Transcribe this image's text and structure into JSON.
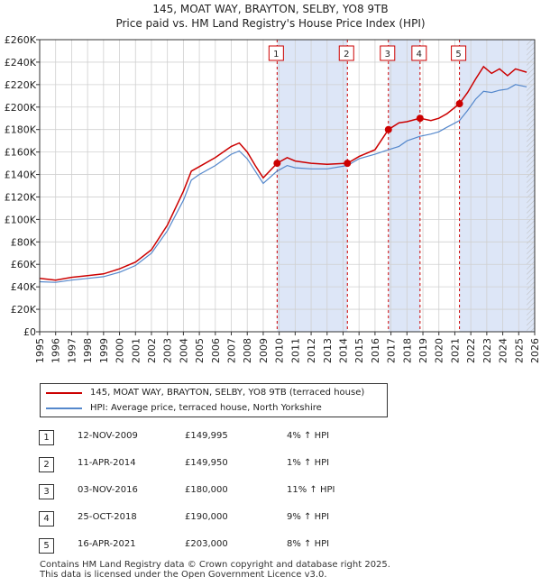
{
  "chart_data": {
    "type": "line",
    "title": "145, MOAT WAY, BRAYTON, SELBY, YO8 9TB",
    "subtitle": "Price paid vs. HM Land Registry's House Price Index (HPI)",
    "xlim": [
      1995,
      2026
    ],
    "ylim": [
      0,
      260000
    ],
    "y_ticks": [
      0,
      20000,
      40000,
      60000,
      80000,
      100000,
      120000,
      140000,
      160000,
      180000,
      200000,
      220000,
      240000,
      260000
    ],
    "y_tick_labels": [
      "£0",
      "£20K",
      "£40K",
      "£60K",
      "£80K",
      "£100K",
      "£120K",
      "£140K",
      "£160K",
      "£180K",
      "£200K",
      "£220K",
      "£240K",
      "£260K"
    ],
    "x_ticks": [
      1995,
      1996,
      1997,
      1998,
      1999,
      2000,
      2001,
      2002,
      2003,
      2004,
      2005,
      2006,
      2007,
      2008,
      2009,
      2010,
      2011,
      2012,
      2013,
      2014,
      2015,
      2016,
      2017,
      2018,
      2019,
      2020,
      2021,
      2022,
      2023,
      2024,
      2025,
      2026
    ],
    "x_tick_labels": [
      "1995",
      "1996",
      "1997",
      "1998",
      "1999",
      "2000",
      "2001",
      "2002",
      "2003",
      "2004",
      "2005",
      "2006",
      "2007",
      "2008",
      "2009",
      "2010",
      "2011",
      "2012",
      "2013",
      "2014",
      "2015",
      "2016",
      "2017",
      "2018",
      "2019",
      "2020",
      "2021",
      "2022",
      "2023",
      "2024",
      "2025",
      "2026"
    ],
    "grid": true,
    "series": [
      {
        "name": "145, MOAT WAY, BRAYTON, SELBY, YO8 9TB (terraced house)",
        "color": "#cc0000",
        "points": [
          [
            1995.0,
            47500
          ],
          [
            1996.0,
            46000
          ],
          [
            1997.0,
            48500
          ],
          [
            1998.0,
            50000
          ],
          [
            1999.0,
            51500
          ],
          [
            2000.0,
            56000
          ],
          [
            2001.0,
            62000
          ],
          [
            2002.0,
            73000
          ],
          [
            2003.0,
            95000
          ],
          [
            2004.0,
            125000
          ],
          [
            2004.5,
            143000
          ],
          [
            2005.0,
            147000
          ],
          [
            2006.0,
            155000
          ],
          [
            2007.0,
            165000
          ],
          [
            2007.5,
            168000
          ],
          [
            2008.0,
            160000
          ],
          [
            2008.5,
            148000
          ],
          [
            2009.0,
            137000
          ],
          [
            2009.87,
            149995
          ],
          [
            2010.5,
            155000
          ],
          [
            2011.0,
            152000
          ],
          [
            2012.0,
            150000
          ],
          [
            2013.0,
            149000
          ],
          [
            2014.27,
            149950
          ],
          [
            2015.0,
            156000
          ],
          [
            2016.0,
            162000
          ],
          [
            2016.84,
            180000
          ],
          [
            2017.5,
            186000
          ],
          [
            2018.0,
            187000
          ],
          [
            2018.82,
            190000
          ],
          [
            2019.5,
            188000
          ],
          [
            2020.0,
            190000
          ],
          [
            2020.5,
            194000
          ],
          [
            2021.29,
            203000
          ],
          [
            2021.8,
            213000
          ],
          [
            2022.3,
            225000
          ],
          [
            2022.8,
            236000
          ],
          [
            2023.3,
            230000
          ],
          [
            2023.8,
            234000
          ],
          [
            2024.3,
            228000
          ],
          [
            2024.8,
            234000
          ],
          [
            2025.5,
            231000
          ]
        ]
      },
      {
        "name": "HPI: Average price, terraced house, North Yorkshire",
        "color": "#5588cc",
        "points": [
          [
            1995.0,
            44500
          ],
          [
            1996.0,
            44000
          ],
          [
            1997.0,
            46000
          ],
          [
            1998.0,
            47500
          ],
          [
            1999.0,
            49000
          ],
          [
            2000.0,
            53000
          ],
          [
            2001.0,
            59000
          ],
          [
            2002.0,
            70000
          ],
          [
            2003.0,
            90000
          ],
          [
            2004.0,
            117000
          ],
          [
            2004.5,
            135000
          ],
          [
            2005.0,
            140000
          ],
          [
            2006.0,
            148000
          ],
          [
            2007.0,
            158000
          ],
          [
            2007.5,
            161000
          ],
          [
            2008.0,
            154000
          ],
          [
            2008.5,
            143000
          ],
          [
            2009.0,
            132000
          ],
          [
            2009.87,
            143000
          ],
          [
            2010.5,
            148000
          ],
          [
            2011.0,
            146000
          ],
          [
            2012.0,
            145000
          ],
          [
            2013.0,
            145000
          ],
          [
            2014.27,
            148000
          ],
          [
            2015.0,
            154000
          ],
          [
            2016.0,
            158000
          ],
          [
            2016.84,
            162000
          ],
          [
            2017.5,
            165000
          ],
          [
            2018.0,
            170000
          ],
          [
            2018.82,
            174000
          ],
          [
            2019.5,
            176000
          ],
          [
            2020.0,
            178000
          ],
          [
            2020.5,
            182000
          ],
          [
            2021.29,
            188000
          ],
          [
            2021.8,
            197000
          ],
          [
            2022.3,
            207000
          ],
          [
            2022.8,
            214000
          ],
          [
            2023.3,
            213000
          ],
          [
            2023.8,
            215000
          ],
          [
            2024.3,
            216000
          ],
          [
            2024.8,
            220000
          ],
          [
            2025.5,
            218000
          ]
        ]
      }
    ],
    "sales": [
      {
        "label": "1",
        "x": 2009.87,
        "y": 149995
      },
      {
        "label": "2",
        "x": 2014.27,
        "y": 149950
      },
      {
        "label": "3",
        "x": 2016.84,
        "y": 180000
      },
      {
        "label": "4",
        "x": 2018.82,
        "y": 190000
      },
      {
        "label": "5",
        "x": 2021.29,
        "y": 203000
      }
    ],
    "shaded_ranges": [
      [
        2009.87,
        2014.27
      ],
      [
        2016.84,
        2018.82
      ],
      [
        2021.29,
        2026
      ]
    ],
    "hatched_range": [
      2025.5,
      2026
    ]
  },
  "colors": {
    "red": "#cc0000",
    "blue": "#5588cc",
    "shade": "#dde6f7",
    "grid": "#d0d0d0"
  },
  "legend": {
    "items": [
      {
        "label": "145, MOAT WAY, BRAYTON, SELBY, YO8 9TB (terraced house)",
        "color": "#cc0000"
      },
      {
        "label": "HPI: Average price, terraced house, North Yorkshire",
        "color": "#5588cc"
      }
    ]
  },
  "sales_table": [
    {
      "num": "1",
      "date": "12-NOV-2009",
      "price": "£149,995",
      "hpi": "4% ↑ HPI"
    },
    {
      "num": "2",
      "date": "11-APR-2014",
      "price": "£149,950",
      "hpi": "1% ↑ HPI"
    },
    {
      "num": "3",
      "date": "03-NOV-2016",
      "price": "£180,000",
      "hpi": "11% ↑ HPI"
    },
    {
      "num": "4",
      "date": "25-OCT-2018",
      "price": "£190,000",
      "hpi": "9% ↑ HPI"
    },
    {
      "num": "5",
      "date": "16-APR-2021",
      "price": "£203,000",
      "hpi": "8% ↑ HPI"
    }
  ],
  "footer": {
    "line1": "Contains HM Land Registry data © Crown copyright and database right 2025.",
    "line2": "This data is licensed under the Open Government Licence v3.0."
  }
}
